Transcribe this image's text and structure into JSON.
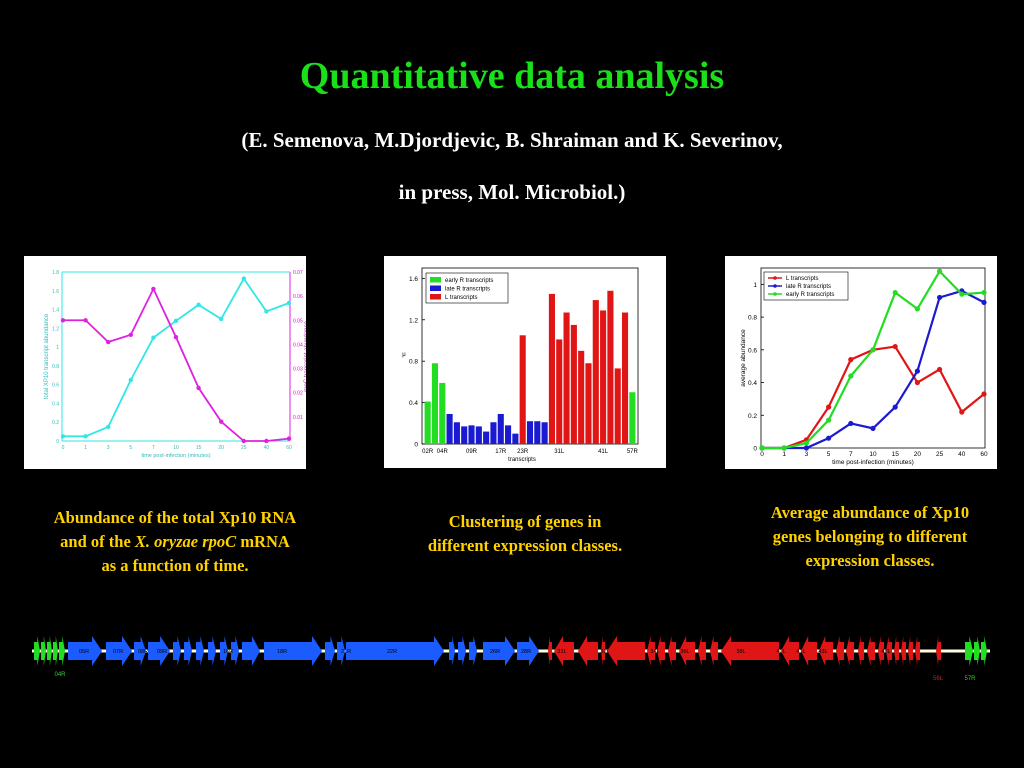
{
  "slide": {
    "title": "Quantitative data analysis",
    "subtitle_line1": "(E. Semenova, M.Djordjevic, B. Shraiman and K. Severinov,",
    "subtitle_line2": "in press, Mol. Microbiol.)",
    "caption1": {
      "line1": "Abundance of the total Xp10 RNA",
      "line2a": "and of the",
      "line2_italic": "X. oryzae rpoC",
      "line2b": "mRNA",
      "line3": "as a function of time."
    },
    "caption2": {
      "line1": "Clustering of genes in",
      "line2": "different expression classes."
    },
    "caption3": {
      "line1": "Average abundance of Xp10",
      "line2": "genes belonging to different",
      "line3": "expression classes."
    },
    "colors": {
      "title": "#1ae01a",
      "caption": "#ffd200",
      "subtitle": "#ffffff"
    }
  },
  "chart_data": [
    {
      "type": "line",
      "xlabel": "time post-infection (minutes)",
      "ylabel_left": "total XP10 transcript abundance",
      "ylabel_right": "rpoC transcript abundance",
      "categories": [
        "0",
        "1",
        "3",
        "5",
        "7",
        "10",
        "15",
        "20",
        "25",
        "40",
        "60"
      ],
      "left_ticks": [
        "0",
        "0.2",
        "0.4",
        "0.6",
        "0.8",
        "1",
        "1.2",
        "1.4",
        "1.6",
        "1.8"
      ],
      "right_ticks": [
        "0.01",
        "0.02",
        "0.03",
        "0.04",
        "0.05",
        "0.06",
        "0.07"
      ],
      "ylim_left": [
        0,
        1.8
      ],
      "ylim_right": [
        0,
        0.07
      ],
      "series": [
        {
          "name": "total XP10 transcript abundance",
          "axis": "left",
          "color": "#33e6e6",
          "values": [
            0.05,
            0.05,
            0.15,
            0.65,
            1.1,
            1.28,
            1.45,
            1.3,
            1.73,
            1.38,
            1.47
          ]
        },
        {
          "name": "rpoC transcript abundance",
          "axis": "right",
          "color": "#e020e0",
          "values": [
            0.05,
            0.05,
            0.041,
            0.044,
            0.063,
            0.043,
            0.022,
            0.008,
            0.0,
            0.0,
            0.001
          ]
        }
      ]
    },
    {
      "type": "bar",
      "xlabel": "transcripts",
      "ylabel": "μ",
      "yticks": [
        "0",
        "0.4",
        "0.8",
        "1.2",
        "1.6"
      ],
      "ylim": [
        0,
        1.7
      ],
      "tick_labels": [
        {
          "label": "02R",
          "index": 0
        },
        {
          "label": "04R",
          "index": 2
        },
        {
          "label": "09R",
          "index": 6
        },
        {
          "label": "17R",
          "index": 10
        },
        {
          "label": "23R",
          "index": 13
        },
        {
          "label": "31L",
          "index": 18
        },
        {
          "label": "41L",
          "index": 24
        },
        {
          "label": "57R",
          "index": 28
        }
      ],
      "legend": [
        {
          "name": "early R transcripts",
          "color": "#22dd22"
        },
        {
          "name": "late R transcripts",
          "color": "#1a1ad0"
        },
        {
          "name": "L transcripts",
          "color": "#e01515"
        }
      ],
      "classes": [
        "early",
        "early",
        "early",
        "late",
        "late",
        "late",
        "late",
        "late",
        "late",
        "late",
        "late",
        "late",
        "late",
        "L",
        "late",
        "late",
        "late",
        "L",
        "L",
        "L",
        "L",
        "L",
        "L",
        "L",
        "L",
        "L",
        "L",
        "L",
        "early"
      ],
      "values": [
        0.41,
        0.78,
        0.59,
        0.29,
        0.21,
        0.17,
        0.18,
        0.17,
        0.12,
        0.21,
        0.29,
        0.18,
        0.1,
        1.05,
        0.22,
        0.22,
        0.21,
        1.45,
        1.01,
        1.27,
        1.15,
        0.9,
        0.78,
        1.39,
        1.29,
        1.48,
        0.73,
        1.27,
        0.5
      ]
    },
    {
      "type": "line",
      "xlabel": "time post-infection (minutes)",
      "ylabel": "average abundance",
      "categories": [
        "0",
        "1",
        "3",
        "5",
        "7",
        "10",
        "15",
        "20",
        "25",
        "40",
        "60"
      ],
      "yticks": [
        "0",
        "0.2",
        "0.4",
        "0.6",
        "0.8",
        "1"
      ],
      "ylim": [
        0,
        1.1
      ],
      "legend_position": "top-left",
      "series": [
        {
          "name": "L transcripts",
          "color": "#e01515",
          "values": [
            0.0,
            0.0,
            0.05,
            0.25,
            0.54,
            0.6,
            0.62,
            0.4,
            0.48,
            0.22,
            0.33
          ]
        },
        {
          "name": "late R transcripts",
          "color": "#1a1ad0",
          "values": [
            0.0,
            0.0,
            0.0,
            0.06,
            0.15,
            0.12,
            0.25,
            0.47,
            0.92,
            0.96,
            0.89
          ]
        },
        {
          "name": "early R transcripts",
          "color": "#22dd22",
          "values": [
            0.0,
            0.0,
            0.03,
            0.17,
            0.44,
            0.6,
            0.95,
            0.85,
            1.08,
            0.94,
            0.95
          ]
        }
      ]
    }
  ],
  "genome": {
    "labels_on_arrows": [
      {
        "text": "05R",
        "cls": "late"
      },
      {
        "text": "07R",
        "cls": "late"
      },
      {
        "text": "08R",
        "cls": "late"
      },
      {
        "text": "09R",
        "cls": "late"
      },
      {
        "text": "16R",
        "cls": "late"
      },
      {
        "text": "18R",
        "cls": "late"
      },
      {
        "text": "21R",
        "cls": "late"
      },
      {
        "text": "22R",
        "cls": "late"
      },
      {
        "text": "26R",
        "cls": "late"
      },
      {
        "text": "28R",
        "cls": "late"
      },
      {
        "text": "31L",
        "cls": "L"
      },
      {
        "text": "32L",
        "cls": "L"
      },
      {
        "text": "34L",
        "cls": "L"
      },
      {
        "text": "36L",
        "cls": "L"
      },
      {
        "text": "38L",
        "cls": "L"
      },
      {
        "text": "40L",
        "cls": "L"
      },
      {
        "text": "41L",
        "cls": "L"
      },
      {
        "text": "43L",
        "cls": "L"
      },
      {
        "text": "48L",
        "cls": "L"
      }
    ],
    "labels_below": [
      {
        "text": "04R",
        "cls": "early"
      },
      {
        "text": "56L",
        "cls": "L"
      },
      {
        "text": "57R",
        "cls": "early"
      }
    ]
  }
}
